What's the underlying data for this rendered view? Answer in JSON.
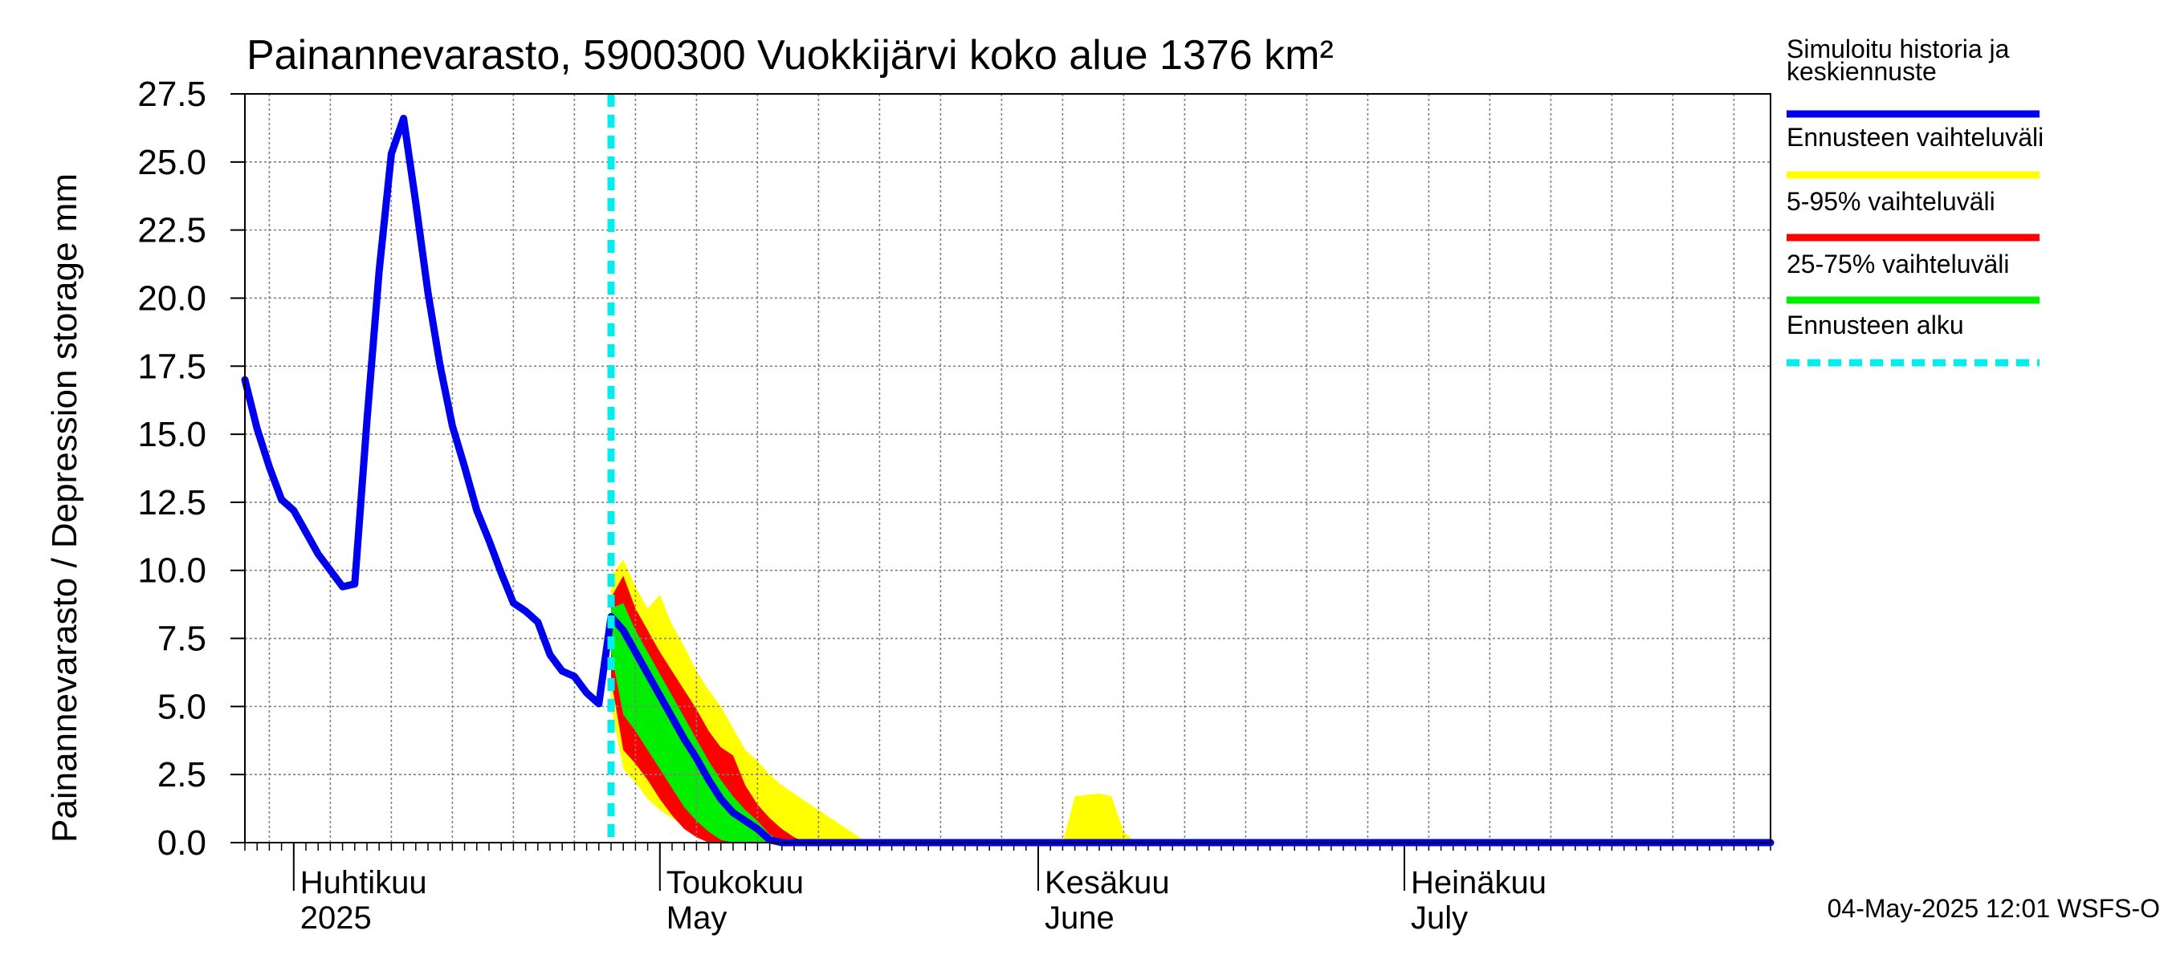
{
  "chart_data": {
    "type": "area",
    "title": "Painannevarasto, 5900300 Vuokkijärvi koko alue 1376 km²",
    "ylabel": "Painannevarasto / Depression storage    mm",
    "ylim": [
      0,
      27.5
    ],
    "yticks": [
      "0.0",
      "2.5",
      "5.0",
      "7.5",
      "10.0",
      "12.5",
      "15.0",
      "17.5",
      "20.0",
      "22.5",
      "25.0",
      "27.5"
    ],
    "xlim": [
      "2025-03-28",
      "2025-07-31"
    ],
    "grid": true,
    "legend_position": "right",
    "forecast_start": "2025-04-27",
    "months": [
      {
        "date": "2025-04-01",
        "fi": "Huhtikuu",
        "en": "2025"
      },
      {
        "date": "2025-05-01",
        "fi": "Toukokuu",
        "en": "May"
      },
      {
        "date": "2025-06-01",
        "fi": "Kesäkuu",
        "en": "June"
      },
      {
        "date": "2025-07-01",
        "fi": "Heinäkuu",
        "en": "July"
      }
    ],
    "series": [
      {
        "name": "Simuloitu historia ja keskiennuste",
        "color": "#0000ee",
        "points": [
          [
            "2025-03-28",
            17.0
          ],
          [
            "2025-03-29",
            15.2
          ],
          [
            "2025-03-30",
            13.8
          ],
          [
            "2025-03-31",
            12.6
          ],
          [
            "2025-04-01",
            12.2
          ],
          [
            "2025-04-02",
            11.4
          ],
          [
            "2025-04-03",
            10.6
          ],
          [
            "2025-04-04",
            10.0
          ],
          [
            "2025-04-05",
            9.4
          ],
          [
            "2025-04-06",
            9.5
          ],
          [
            "2025-04-07",
            15.5
          ],
          [
            "2025-04-08",
            21.0
          ],
          [
            "2025-04-09",
            25.3
          ],
          [
            "2025-04-10",
            26.6
          ],
          [
            "2025-04-11",
            23.5
          ],
          [
            "2025-04-12",
            20.2
          ],
          [
            "2025-04-13",
            17.5
          ],
          [
            "2025-04-14",
            15.3
          ],
          [
            "2025-04-15",
            13.8
          ],
          [
            "2025-04-16",
            12.2
          ],
          [
            "2025-04-17",
            11.1
          ],
          [
            "2025-04-18",
            9.9
          ],
          [
            "2025-04-19",
            8.8
          ],
          [
            "2025-04-20",
            8.5
          ],
          [
            "2025-04-21",
            8.1
          ],
          [
            "2025-04-22",
            6.9
          ],
          [
            "2025-04-23",
            6.3
          ],
          [
            "2025-04-24",
            6.1
          ],
          [
            "2025-04-25",
            5.5
          ],
          [
            "2025-04-26",
            5.1
          ],
          [
            "2025-04-27",
            8.3
          ],
          [
            "2025-04-28",
            7.8
          ],
          [
            "2025-04-29",
            7.0
          ],
          [
            "2025-04-30",
            6.2
          ],
          [
            "2025-05-01",
            5.4
          ],
          [
            "2025-05-02",
            4.6
          ],
          [
            "2025-05-03",
            3.8
          ],
          [
            "2025-05-04",
            3.1
          ],
          [
            "2025-05-05",
            2.3
          ],
          [
            "2025-05-06",
            1.6
          ],
          [
            "2025-05-07",
            1.1
          ],
          [
            "2025-05-08",
            0.8
          ],
          [
            "2025-05-09",
            0.5
          ],
          [
            "2025-05-10",
            0.1
          ],
          [
            "2025-05-11",
            0.0
          ],
          [
            "2025-05-20",
            0.0
          ],
          [
            "2025-06-15",
            0.0
          ],
          [
            "2025-07-31",
            0.0
          ]
        ]
      }
    ],
    "bands": [
      {
        "name": "Ennusteen vaihteluväli",
        "color": "#ffff00",
        "points": [
          [
            "2025-04-27",
            5.0,
            9.8
          ],
          [
            "2025-04-28",
            2.7,
            10.4
          ],
          [
            "2025-04-29",
            2.2,
            9.4
          ],
          [
            "2025-04-30",
            1.6,
            8.6
          ],
          [
            "2025-05-01",
            1.2,
            9.1
          ],
          [
            "2025-05-02",
            0.9,
            8.0
          ],
          [
            "2025-05-03",
            0.6,
            7.2
          ],
          [
            "2025-05-04",
            0.3,
            6.3
          ],
          [
            "2025-05-05",
            0.1,
            5.6
          ],
          [
            "2025-05-06",
            0.0,
            5.0
          ],
          [
            "2025-05-07",
            0.0,
            4.2
          ],
          [
            "2025-05-08",
            0.0,
            3.4
          ],
          [
            "2025-05-09",
            0.0,
            3.0
          ],
          [
            "2025-05-10",
            0.0,
            2.5
          ],
          [
            "2025-05-11",
            0.0,
            2.1
          ],
          [
            "2025-05-12",
            0.0,
            1.8
          ],
          [
            "2025-05-13",
            0.0,
            1.5
          ],
          [
            "2025-05-14",
            0.0,
            1.2
          ],
          [
            "2025-05-15",
            0.0,
            0.9
          ],
          [
            "2025-05-16",
            0.0,
            0.6
          ],
          [
            "2025-05-17",
            0.0,
            0.3
          ],
          [
            "2025-05-18",
            0.0,
            0.0
          ],
          [
            "2025-06-03",
            0.0,
            0.0
          ],
          [
            "2025-06-04",
            0.0,
            1.7
          ],
          [
            "2025-06-06",
            0.0,
            1.8
          ],
          [
            "2025-06-07",
            0.0,
            1.7
          ],
          [
            "2025-06-08",
            0.0,
            0.4
          ],
          [
            "2025-06-09",
            0.0,
            0.0
          ]
        ]
      },
      {
        "name": "5-95% vaihteluväli",
        "color": "#ff0000",
        "points": [
          [
            "2025-04-27",
            6.0,
            9.0
          ],
          [
            "2025-04-28",
            3.4,
            9.8
          ],
          [
            "2025-04-29",
            2.9,
            8.6
          ],
          [
            "2025-04-30",
            2.3,
            7.8
          ],
          [
            "2025-05-01",
            1.6,
            7.0
          ],
          [
            "2025-05-02",
            1.0,
            6.3
          ],
          [
            "2025-05-03",
            0.5,
            5.6
          ],
          [
            "2025-05-04",
            0.2,
            4.9
          ],
          [
            "2025-05-05",
            0.0,
            4.1
          ],
          [
            "2025-05-06",
            0.0,
            3.5
          ],
          [
            "2025-05-07",
            0.0,
            3.2
          ],
          [
            "2025-05-08",
            0.0,
            2.1
          ],
          [
            "2025-05-09",
            0.0,
            1.4
          ],
          [
            "2025-05-10",
            0.0,
            0.9
          ],
          [
            "2025-05-11",
            0.0,
            0.5
          ],
          [
            "2025-05-12",
            0.0,
            0.2
          ],
          [
            "2025-05-13",
            0.0,
            0.0
          ]
        ]
      },
      {
        "name": "25-75% vaihteluväli",
        "color": "#00ee00",
        "points": [
          [
            "2025-04-27",
            7.0,
            8.6
          ],
          [
            "2025-04-28",
            4.7,
            8.8
          ],
          [
            "2025-04-29",
            4.1,
            7.8
          ],
          [
            "2025-04-30",
            3.4,
            7.0
          ],
          [
            "2025-05-01",
            2.7,
            6.2
          ],
          [
            "2025-05-02",
            2.0,
            5.4
          ],
          [
            "2025-05-03",
            1.3,
            4.6
          ],
          [
            "2025-05-04",
            0.8,
            3.8
          ],
          [
            "2025-05-05",
            0.4,
            3.0
          ],
          [
            "2025-05-06",
            0.1,
            2.3
          ],
          [
            "2025-05-07",
            0.0,
            1.7
          ],
          [
            "2025-05-08",
            0.0,
            1.2
          ],
          [
            "2025-05-09",
            0.0,
            0.8
          ],
          [
            "2025-05-10",
            0.0,
            0.3
          ],
          [
            "2025-05-11",
            0.0,
            0.0
          ]
        ]
      }
    ],
    "legend": [
      {
        "label": "Simuloitu historia ja\nkeskiennuste",
        "color": "#0000ee",
        "style": "solid"
      },
      {
        "label": "Ennusteen vaihteluväli",
        "color": "#ffff00",
        "style": "solid"
      },
      {
        "label": "5-95% vaihteluväli",
        "color": "#ff0000",
        "style": "solid"
      },
      {
        "label": "25-75% vaihteluväli",
        "color": "#00ee00",
        "style": "solid"
      },
      {
        "label": "Ennusteen alku",
        "color": "#00eeee",
        "style": "dashed"
      }
    ],
    "footer": "04-May-2025 12:01 WSFS-O"
  }
}
